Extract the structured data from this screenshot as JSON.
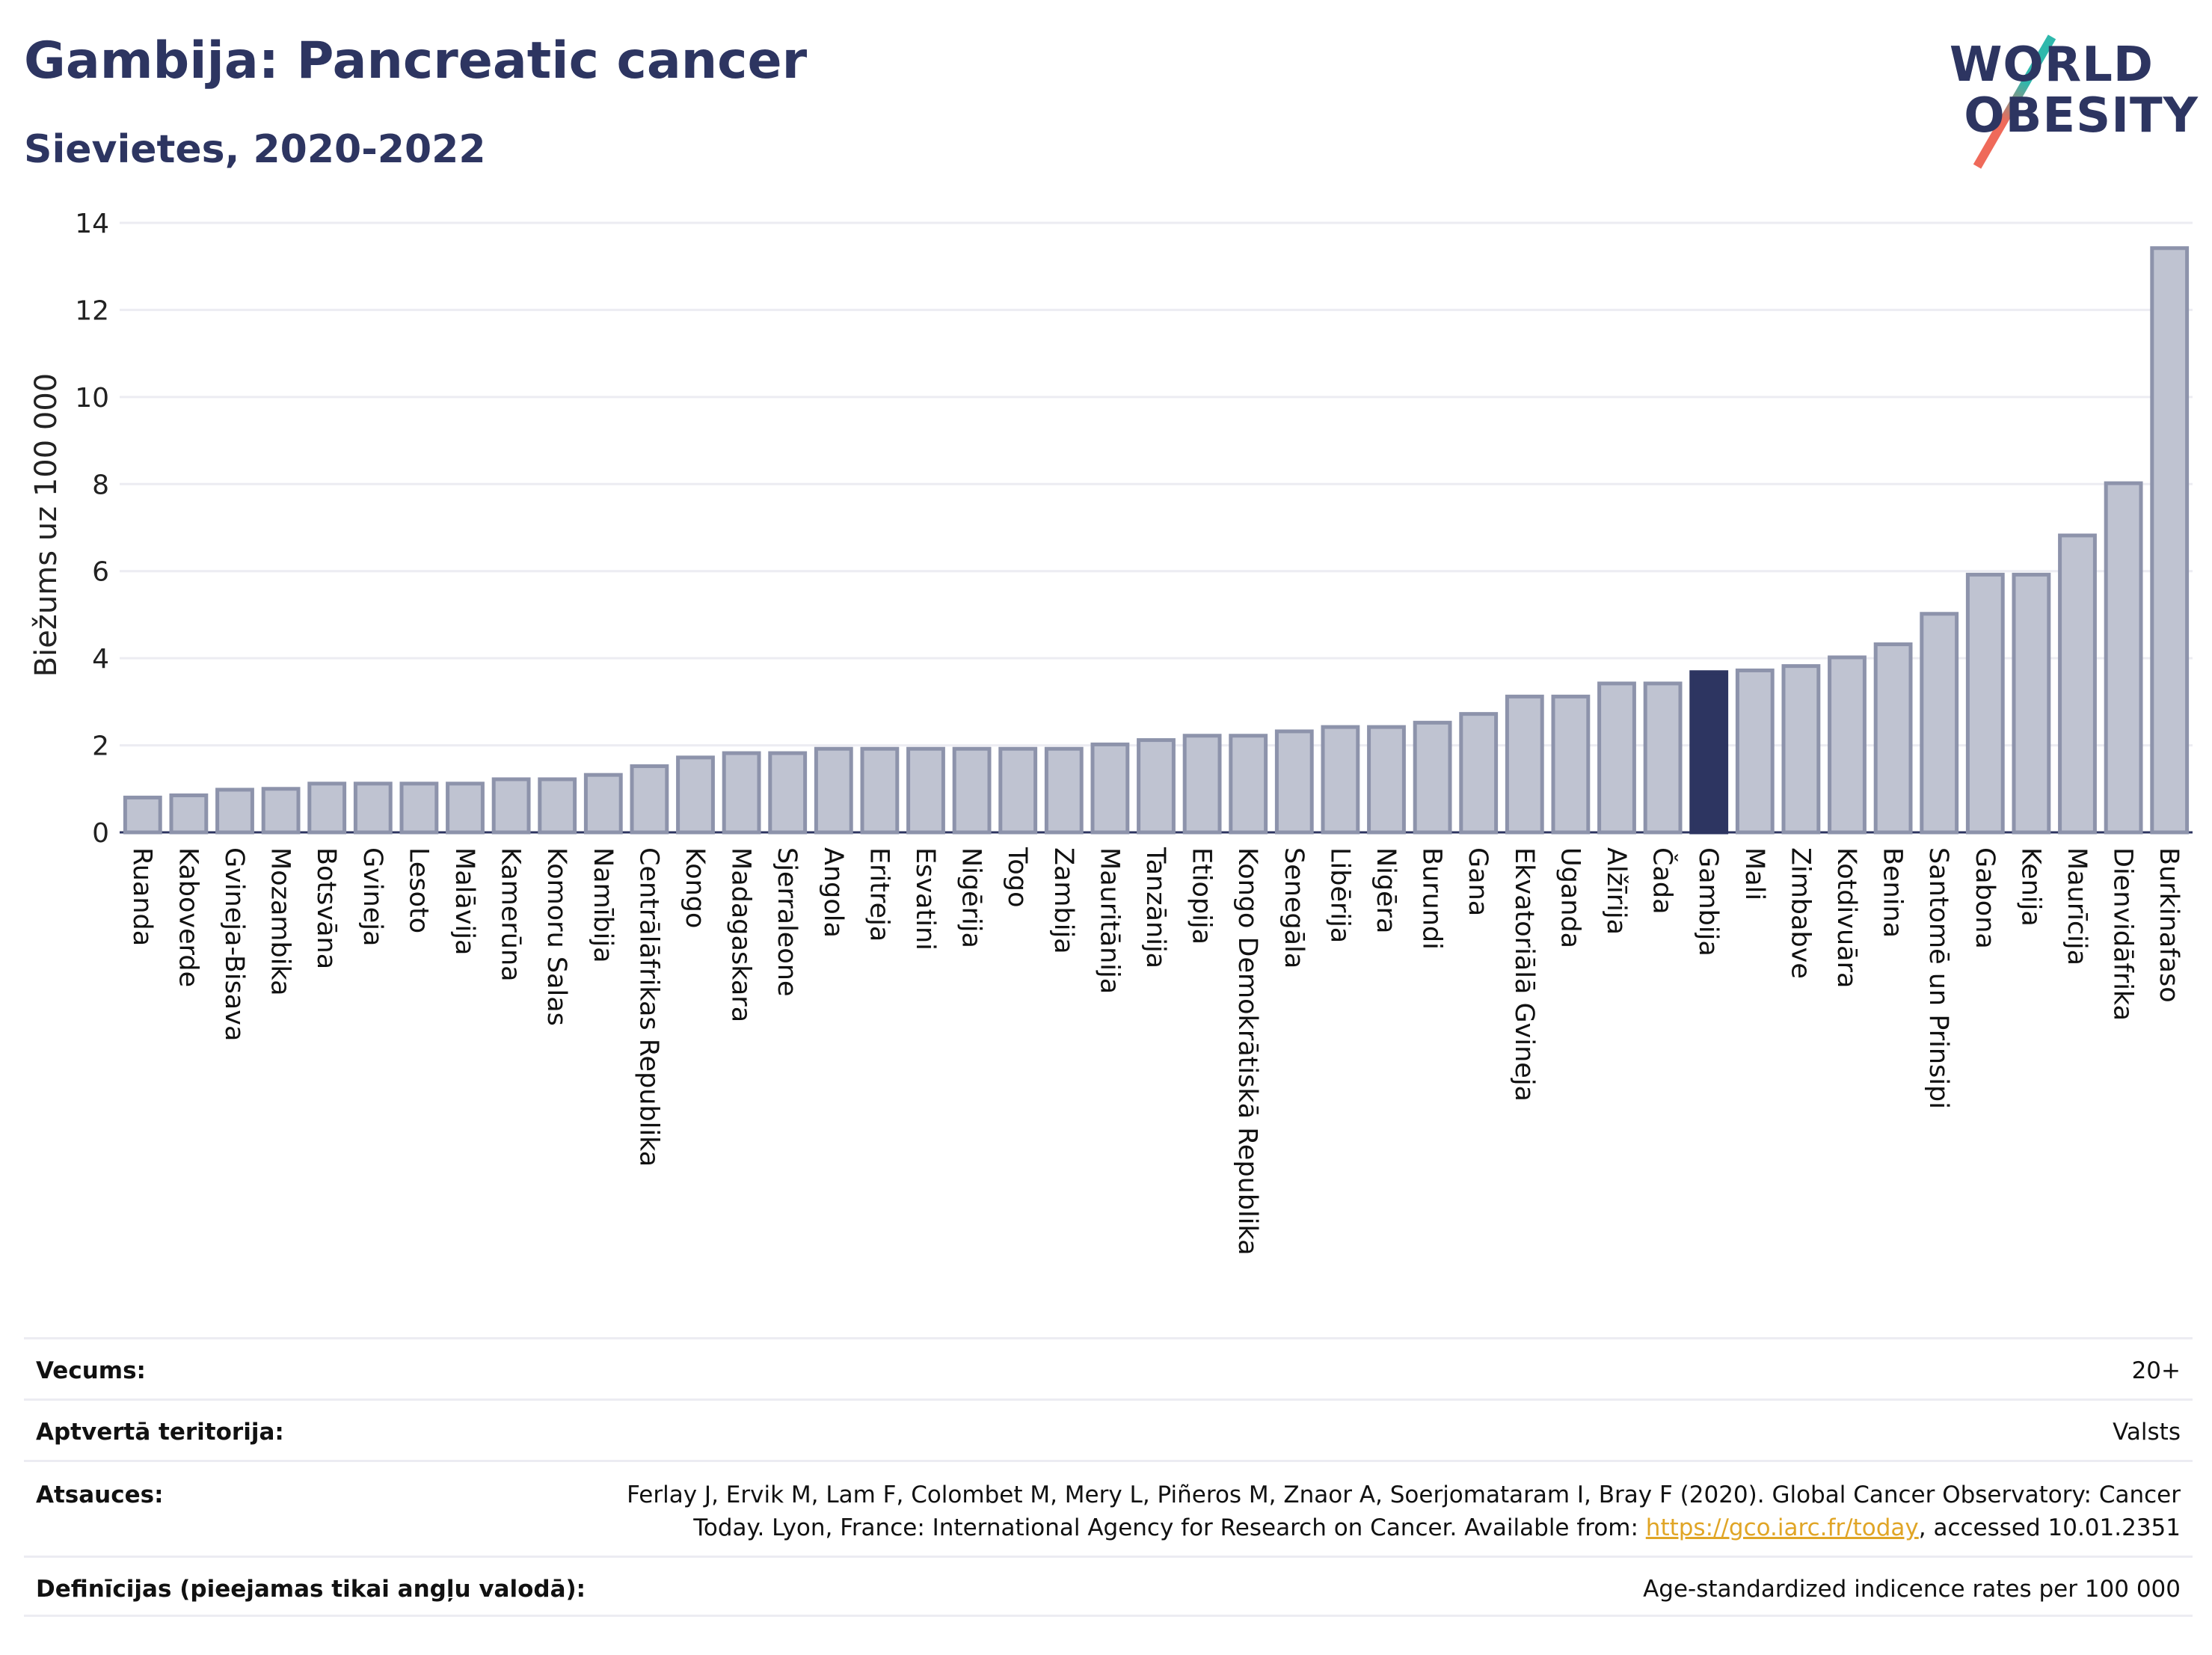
{
  "header": {
    "title": "Gambija: Pancreatic cancer",
    "subtitle": "Sievietes, 2020-2022"
  },
  "logo": {
    "line1": "WORLD",
    "line2": "OBESITY"
  },
  "colors": {
    "bar": "#bfc3d1",
    "bar_edge": "#8d93ab",
    "highlight": "#2d3561",
    "grid": "#ececf2"
  },
  "chart_data": {
    "type": "bar",
    "ylabel": "Biežums uz 100 000",
    "ylim": [
      0,
      14
    ],
    "yticks": [
      0,
      2,
      4,
      6,
      8,
      10,
      12,
      14
    ],
    "grid": true,
    "highlight": "Gambija",
    "categories": [
      "Ruanda",
      "Kaboverde",
      "Gvineja-Bisava",
      "Mozambika",
      "Botsvāna",
      "Gvineja",
      "Lesoto",
      "Malāvija",
      "Kamerūna",
      "Komoru Salas",
      "Namībija",
      "Centrālāfrikas Republika",
      "Kongo",
      "Madagaskara",
      "Sjerraleone",
      "Angola",
      "Eritreja",
      "Esvatini",
      "Nigērija",
      "Togo",
      "Zambija",
      "Mauritānija",
      "Tanzānija",
      "Etiopija",
      "Kongo Demokrātiskā Republika",
      "Senegāla",
      "Libērija",
      "Nigēra",
      "Burundi",
      "Gana",
      "Ekvatoriālā Gvineja",
      "Uganda",
      "Alžīrija",
      "Čada",
      "Gambija",
      "Mali",
      "Zimbabve",
      "Kotdivuāra",
      "Benina",
      "Santomē un Prinsipi",
      "Gabona",
      "Kenija",
      "Maurīcija",
      "Dienvidāfrika",
      "Burkinafaso"
    ],
    "values": [
      0.8,
      0.85,
      0.98,
      1.0,
      1.12,
      1.12,
      1.12,
      1.12,
      1.22,
      1.22,
      1.32,
      1.52,
      1.72,
      1.82,
      1.82,
      1.92,
      1.92,
      1.92,
      1.92,
      1.92,
      1.92,
      2.02,
      2.12,
      2.22,
      2.22,
      2.32,
      2.42,
      2.42,
      2.52,
      2.72,
      3.12,
      3.12,
      3.42,
      3.42,
      3.68,
      3.72,
      3.82,
      4.02,
      4.32,
      5.02,
      5.92,
      5.92,
      6.82,
      8.02,
      13.42
    ]
  },
  "info": {
    "age_label": "Vecums:",
    "age_value": "20+",
    "territory_label": "Aptvertā teritorija:",
    "territory_value": "Valsts",
    "refs_label": "Atsauces:",
    "refs_line1": "Ferlay J, Ervik M, Lam F, Colombet M, Mery L, Piñeros M, Znaor A, Soerjomataram I, Bray F (2020). Global Cancer Observatory: Cancer",
    "refs_line2_pre": "Today. Lyon, France: International Agency for Research on Cancer. Available from: ",
    "refs_link": "https://gco.iarc.fr/today",
    "refs_line2_post": ", accessed 10.01.2351",
    "def_label": "Definīcijas (pieejamas tikai angļu valodā):",
    "def_value": "Age-standardized indicence rates per 100 000"
  }
}
